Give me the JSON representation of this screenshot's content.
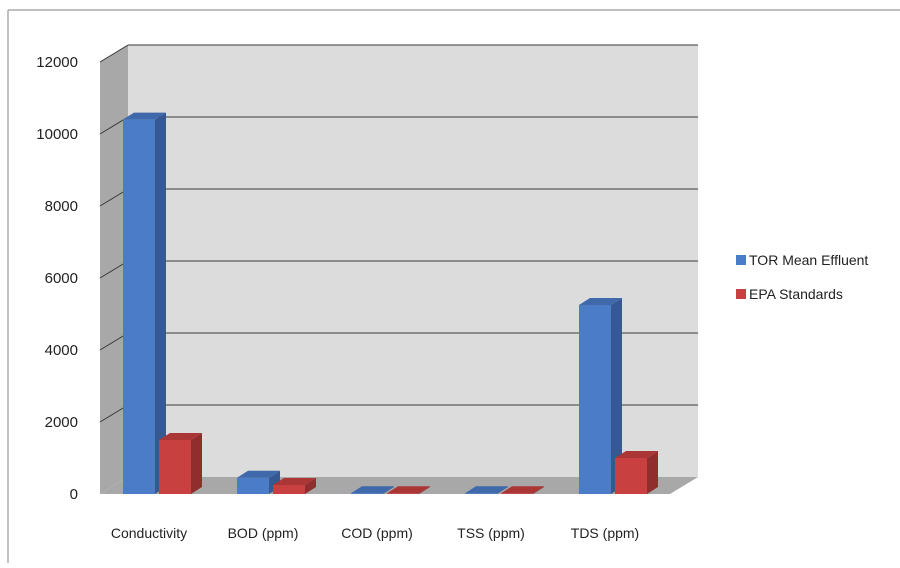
{
  "chart_data": {
    "type": "bar",
    "title": "",
    "xlabel": "",
    "ylabel": "",
    "categories": [
      "Conductivity",
      "BOD (ppm)",
      "COD (ppm)",
      "TSS (ppm)",
      "TDS (ppm)"
    ],
    "series": [
      {
        "name": "TOR Mean Effluent",
        "values": [
          10400,
          450,
          20,
          20,
          5250
        ],
        "color": "#4a7cc8"
      },
      {
        "name": "EPA Standards",
        "values": [
          1500,
          250,
          20,
          20,
          1000
        ],
        "color": "#c84040"
      }
    ],
    "ylim": [
      0,
      12000
    ],
    "yticks": [
      0,
      2000,
      4000,
      6000,
      8000,
      10000,
      12000
    ],
    "grid": true,
    "legend_position": "right",
    "three_d": true
  }
}
